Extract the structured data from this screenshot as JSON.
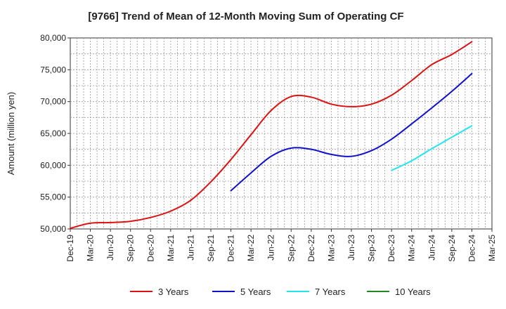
{
  "chart_data": {
    "type": "line",
    "title": "[9766]  Trend of Mean of 12-Month Moving Sum of Operating CF",
    "xlabel": "",
    "ylabel": "Amount (million yen)",
    "ylim": [
      50000,
      80000
    ],
    "yticks": [
      50000,
      55000,
      60000,
      65000,
      70000,
      75000,
      80000
    ],
    "ytick_labels": [
      "50,000",
      "55,000",
      "60,000",
      "65,000",
      "70,000",
      "75,000",
      "80,000"
    ],
    "x": [
      "Dec-19",
      "Mar-20",
      "Jun-20",
      "Sep-20",
      "Dec-20",
      "Mar-21",
      "Jun-21",
      "Sep-21",
      "Dec-21",
      "Mar-22",
      "Jun-22",
      "Sep-22",
      "Dec-22",
      "Mar-23",
      "Jun-23",
      "Sep-23",
      "Dec-23",
      "Mar-24",
      "Jun-24",
      "Sep-24",
      "Dec-24",
      "Mar-25"
    ],
    "grid": true,
    "legend_position": "bottom",
    "series": [
      {
        "name": "3 Years",
        "color": "#dd1111",
        "values": [
          50100,
          50900,
          51000,
          51200,
          51800,
          52800,
          54500,
          57400,
          60900,
          64800,
          68600,
          70800,
          70700,
          69600,
          69200,
          69600,
          71000,
          73300,
          75800,
          77400,
          79400,
          null
        ]
      },
      {
        "name": "5 Years",
        "color": "#1111cc",
        "values": [
          null,
          null,
          null,
          null,
          null,
          null,
          null,
          null,
          56000,
          58800,
          61400,
          62700,
          62500,
          61700,
          61400,
          62300,
          64100,
          66500,
          69000,
          71600,
          74400,
          null
        ]
      },
      {
        "name": "7 Years",
        "color": "#22e5ee",
        "values": [
          null,
          null,
          null,
          null,
          null,
          null,
          null,
          null,
          null,
          null,
          null,
          null,
          null,
          null,
          null,
          null,
          59200,
          60700,
          62600,
          64400,
          66200,
          null
        ]
      },
      {
        "name": "10 Years",
        "color": "#228822",
        "values": [
          null,
          null,
          null,
          null,
          null,
          null,
          null,
          null,
          null,
          null,
          null,
          null,
          null,
          null,
          null,
          null,
          null,
          null,
          null,
          null,
          null,
          null
        ]
      }
    ]
  }
}
